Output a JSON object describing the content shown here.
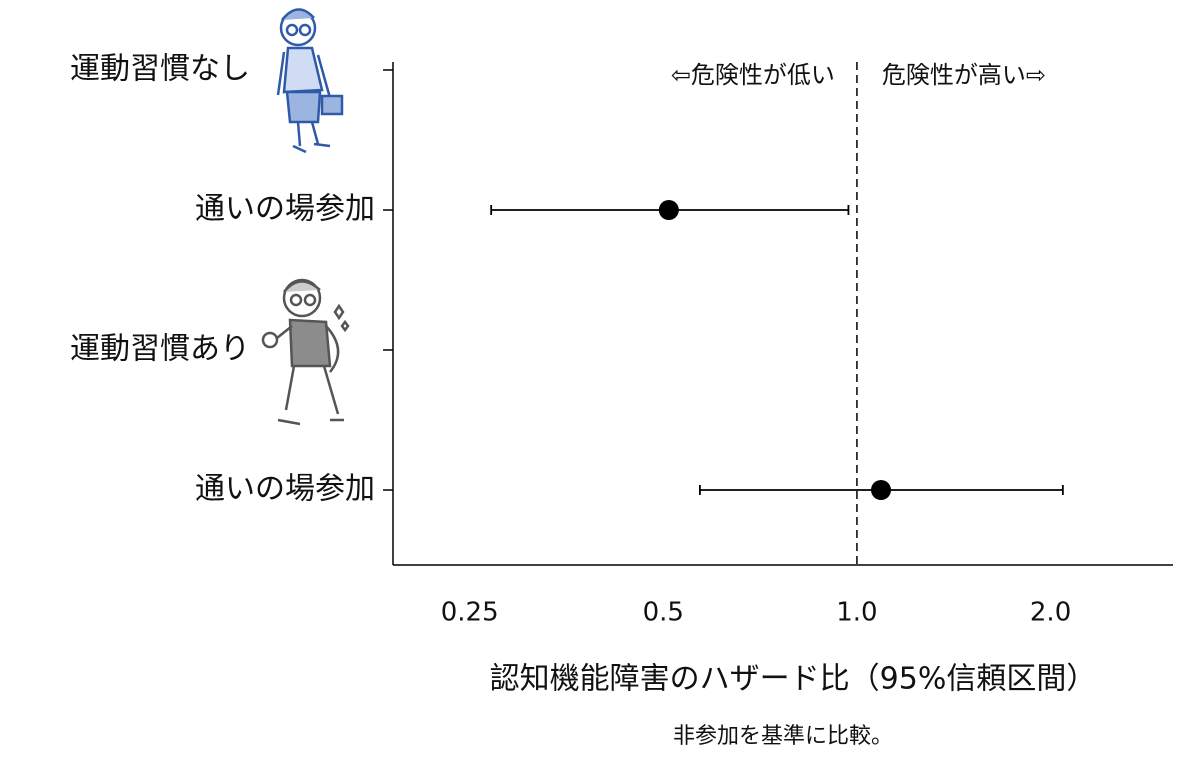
{
  "chart_data": {
    "type": "forest",
    "xlabel": "認知機能障害のハザード比（95%信頼区間）",
    "note": "非参加を基準に比較。",
    "annotations": [
      {
        "text": "⇦危険性が低い",
        "color": "#5b80c4"
      },
      {
        "text": "危険性が高い⇨",
        "color": "#e8893f"
      }
    ],
    "categories": [
      "運動習慣なし",
      "通いの場参加",
      "運動習慣あり",
      "通いの場参加"
    ],
    "values": [
      null,
      0.51,
      null,
      1.09
    ],
    "lower": [
      null,
      0.27,
      null,
      0.57
    ],
    "upper": [
      null,
      0.97,
      null,
      2.09
    ],
    "color": "#000000",
    "xscale": "log",
    "xlim": [
      0.19,
      3.1
    ],
    "xticks": [
      0.25,
      0.5,
      {
        "value": 1,
        "label": "1.0"
      },
      {
        "value": 2,
        "label": "2.0"
      }
    ],
    "reference_line": 1,
    "grid": false
  }
}
